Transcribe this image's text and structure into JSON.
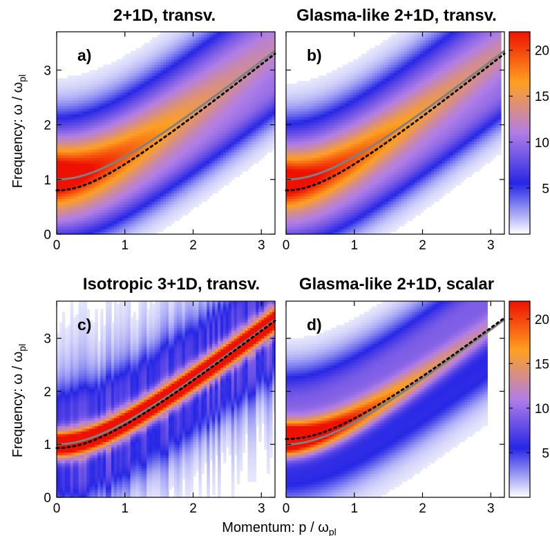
{
  "chart_data": {
    "type": "heatmap",
    "xlabel": {
      "text": "Momentum:  p / ω",
      "sub": "pl"
    },
    "ylabel": {
      "text": "Frequency:  ω / ω",
      "sub": "pl"
    },
    "xlim": [
      0,
      3.2
    ],
    "ylim": [
      0,
      3.7
    ],
    "xticks": [
      0,
      1,
      2,
      3
    ],
    "yticks": [
      0,
      1,
      2,
      3
    ],
    "colorbar": {
      "range": [
        0,
        22
      ],
      "ticks": [
        5,
        10,
        15,
        20
      ],
      "colors": [
        "#ffffff",
        "#2626e6",
        "#b07ee6",
        "#ffa020",
        "#ee1100"
      ]
    },
    "curves": {
      "solid": {
        "name": "",
        "color": "#808080",
        "style": "solid"
      },
      "dotted": {
        "name": "",
        "color": "#000000",
        "style": "dotted"
      }
    },
    "panels": [
      {
        "id": "a",
        "label": "a)",
        "title": "2+1D,  transv.",
        "p_max": 3.2,
        "solid_mass": 1.0,
        "dotted_mass": 0.8,
        "ridge_mass": 1.05,
        "ridge_peak": 18,
        "ridge_decay": 2.2,
        "ridge_width": 0.38,
        "lower_band": 0.55,
        "lower_amp": 6,
        "upper_band": 0.62,
        "upper_amp": 5,
        "noise": 0.0
      },
      {
        "id": "b",
        "label": "b)",
        "title": "Glasma-like 2+1D,  transv.",
        "p_max": 3.15,
        "solid_mass": 1.0,
        "dotted_mass": 0.8,
        "ridge_mass": 0.95,
        "ridge_peak": 17,
        "ridge_decay": 2.6,
        "ridge_width": 0.36,
        "lower_band": 0.55,
        "lower_amp": 6,
        "upper_band": 0.62,
        "upper_amp": 5,
        "noise": 0.0
      },
      {
        "id": "c",
        "label": "c)",
        "title": "Isotropic 3+1D,  transv.",
        "p_max": 3.2,
        "solid_mass": 1.0,
        "dotted_mass": 0.93,
        "ridge_mass": 1.0,
        "ridge_peak": 26,
        "ridge_decay": 100,
        "ridge_width": 0.18,
        "lower_band": 0.45,
        "lower_amp": 2.5,
        "upper_band": 0.45,
        "upper_amp": 2.5,
        "noise": 1.0
      },
      {
        "id": "d",
        "label": "d)",
        "title": "Glasma-like 2+1D,  scalar",
        "p_max": 2.95,
        "solid_mass": 1.0,
        "dotted_mass": 1.1,
        "ridge_mass": 1.1,
        "ridge_peak": 24,
        "ridge_decay": 1.6,
        "ridge_width": 0.22,
        "lower_band": 0.45,
        "lower_amp": 3,
        "upper_band": 0.72,
        "upper_amp": 6,
        "noise": 0.0
      }
    ]
  }
}
